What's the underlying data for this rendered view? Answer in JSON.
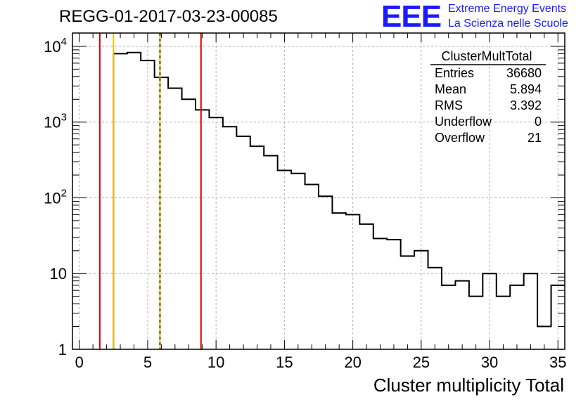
{
  "header": {
    "title": "REGG-01-2017-03-23-00085",
    "logo_text": "EEE",
    "logo_line1": "Extreme Energy Events",
    "logo_line2": "La Scienza nelle Scuole"
  },
  "colors": {
    "logo": "#1a1aff",
    "histogram": "#000000",
    "red_markers": "#dd0000",
    "yellow_markers": "#f2c200",
    "grid": "#b0b0b0"
  },
  "stats_box": {
    "name": "ClusterMultTotal",
    "rows": [
      {
        "label": "Entries",
        "value": "36680"
      },
      {
        "label": "Mean",
        "value": "5.894"
      },
      {
        "label": "RMS",
        "value": "3.392"
      },
      {
        "label": "Underflow",
        "value": "0"
      },
      {
        "label": "Overflow",
        "value": "21"
      }
    ]
  },
  "chart_data": {
    "type": "histogram",
    "title": "REGG-01-2017-03-23-00085",
    "xlabel": "Cluster multiplicity Total",
    "ylabel": "",
    "xlim": [
      -0.5,
      35.5
    ],
    "ylim": [
      1,
      15000
    ],
    "y_scale": "log",
    "grid": true,
    "x_ticks": [
      "0",
      "5",
      "10",
      "15",
      "20",
      "25",
      "30",
      "35"
    ],
    "y_ticks": [
      "1",
      "10",
      "10^2",
      "10^3",
      "10^4"
    ],
    "bin_edges_start": 2.5,
    "bin_width": 1,
    "bin_counts": [
      8000,
      8300,
      6500,
      3900,
      2800,
      2000,
      1450,
      1150,
      870,
      650,
      480,
      360,
      230,
      210,
      150,
      105,
      63,
      60,
      45,
      29,
      28,
      17,
      20,
      12,
      7,
      8,
      5,
      10,
      5,
      7,
      10,
      2,
      7
    ],
    "vertical_lines": [
      {
        "x": 1.5,
        "color": "red"
      },
      {
        "x": 8.9,
        "color": "red"
      },
      {
        "x": 2.5,
        "color": "yellow"
      },
      {
        "x": 5.9,
        "color": "yellow"
      },
      {
        "x": 5.9,
        "color": "dashed-black"
      }
    ]
  }
}
